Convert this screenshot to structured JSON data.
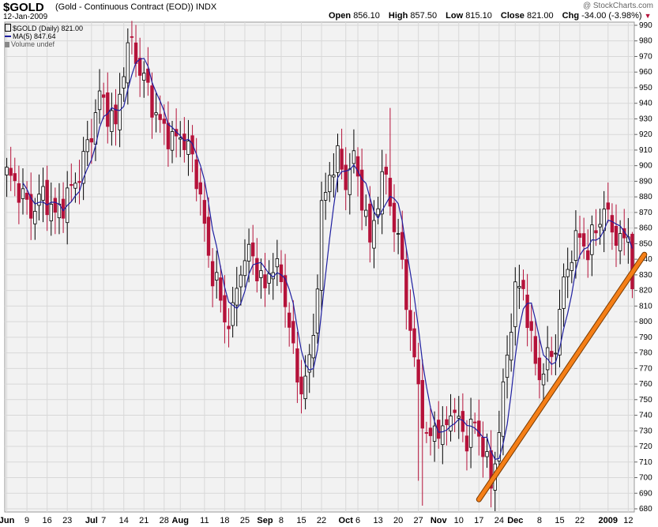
{
  "header": {
    "symbol": "$GOLD",
    "description": "(Gold - Continuous Contract (EOD))",
    "exchange": "INDX",
    "date": "12-Jan-2009",
    "watermark": "@ StockCharts.com",
    "open_label": "Open",
    "open": "856.10",
    "high_label": "High",
    "high": "857.50",
    "low_label": "Low",
    "low": "815.10",
    "close_label": "Close",
    "close": "821.00",
    "chg_label": "Chg",
    "chg": "-34.00 (-3.98%)",
    "chg_icon": "down-triangle-icon"
  },
  "legend": {
    "price": "$GOLD (Daily) 821.00",
    "ma": "MA(5) 847.64",
    "volume": "Volume undef"
  },
  "colors": {
    "up": "#000000",
    "down": "#b5123a",
    "ma": "#1f1fa0",
    "trendline": "#f57f17",
    "grid": "#d8d8d8",
    "plot_bg": "#f2f2f2"
  },
  "chart_data": {
    "type": "candlestick",
    "title": "$GOLD (Gold - Continuous Contract (EOD))",
    "ylim": [
      680,
      990
    ],
    "y_ticks": [
      680,
      690,
      700,
      710,
      720,
      730,
      740,
      750,
      760,
      770,
      780,
      790,
      800,
      810,
      820,
      830,
      840,
      850,
      860,
      870,
      880,
      890,
      900,
      910,
      920,
      930,
      940,
      950,
      960,
      970,
      980,
      990
    ],
    "x_ticks": [
      {
        "label": "Jun",
        "i": 0
      },
      {
        "label": "9",
        "i": 5
      },
      {
        "label": "16",
        "i": 10
      },
      {
        "label": "23",
        "i": 15
      },
      {
        "label": "Jul",
        "i": 21
      },
      {
        "label": "7",
        "i": 24
      },
      {
        "label": "14",
        "i": 29
      },
      {
        "label": "21",
        "i": 34
      },
      {
        "label": "28",
        "i": 39
      },
      {
        "label": "Aug",
        "i": 43
      },
      {
        "label": "11",
        "i": 49
      },
      {
        "label": "18",
        "i": 54
      },
      {
        "label": "25",
        "i": 59
      },
      {
        "label": "Sep",
        "i": 64
      },
      {
        "label": "8",
        "i": 68
      },
      {
        "label": "15",
        "i": 73
      },
      {
        "label": "22",
        "i": 78
      },
      {
        "label": "Oct",
        "i": 84
      },
      {
        "label": "6",
        "i": 87
      },
      {
        "label": "13",
        "i": 92
      },
      {
        "label": "20",
        "i": 97
      },
      {
        "label": "27",
        "i": 102
      },
      {
        "label": "Nov",
        "i": 107
      },
      {
        "label": "10",
        "i": 112
      },
      {
        "label": "17",
        "i": 117
      },
      {
        "label": "24",
        "i": 122
      },
      {
        "label": "Dec",
        "i": 126
      },
      {
        "label": "8",
        "i": 132
      },
      {
        "label": "15",
        "i": 137
      },
      {
        "label": "22",
        "i": 142
      },
      {
        "label": "2009",
        "i": 149
      },
      {
        "label": "12",
        "i": 154
      }
    ],
    "n_bars": 156,
    "anchors": [
      [
        0,
        895
      ],
      [
        3,
        885
      ],
      [
        6,
        870
      ],
      [
        9,
        882
      ],
      [
        12,
        868
      ],
      [
        15,
        880
      ],
      [
        18,
        895
      ],
      [
        21,
        922
      ],
      [
        23,
        945
      ],
      [
        25,
        935
      ],
      [
        27,
        925
      ],
      [
        29,
        965
      ],
      [
        31,
        980
      ],
      [
        33,
        960
      ],
      [
        35,
        950
      ],
      [
        37,
        930
      ],
      [
        39,
        925
      ],
      [
        41,
        915
      ],
      [
        43,
        920
      ],
      [
        46,
        905
      ],
      [
        48,
        880
      ],
      [
        50,
        840
      ],
      [
        52,
        825
      ],
      [
        54,
        800
      ],
      [
        56,
        805
      ],
      [
        58,
        835
      ],
      [
        60,
        845
      ],
      [
        62,
        835
      ],
      [
        64,
        820
      ],
      [
        66,
        840
      ],
      [
        68,
        825
      ],
      [
        70,
        800
      ],
      [
        72,
        760
      ],
      [
        74,
        762
      ],
      [
        76,
        790
      ],
      [
        78,
        870
      ],
      [
        80,
        895
      ],
      [
        82,
        905
      ],
      [
        84,
        890
      ],
      [
        86,
        905
      ],
      [
        88,
        880
      ],
      [
        90,
        850
      ],
      [
        92,
        880
      ],
      [
        94,
        895
      ],
      [
        96,
        860
      ],
      [
        98,
        840
      ],
      [
        100,
        790
      ],
      [
        102,
        760
      ],
      [
        104,
        720
      ],
      [
        106,
        735
      ],
      [
        108,
        725
      ],
      [
        110,
        745
      ],
      [
        112,
        735
      ],
      [
        114,
        725
      ],
      [
        116,
        735
      ],
      [
        118,
        720
      ],
      [
        120,
        695
      ],
      [
        122,
        730
      ],
      [
        124,
        780
      ],
      [
        126,
        820
      ],
      [
        128,
        822
      ],
      [
        130,
        785
      ],
      [
        132,
        765
      ],
      [
        134,
        775
      ],
      [
        136,
        785
      ],
      [
        138,
        825
      ],
      [
        140,
        845
      ],
      [
        142,
        855
      ],
      [
        144,
        845
      ],
      [
        146,
        860
      ],
      [
        148,
        872
      ],
      [
        150,
        860
      ],
      [
        152,
        850
      ],
      [
        154,
        856
      ],
      [
        155,
        821
      ]
    ],
    "ma_period": 5,
    "trendline": {
      "start": {
        "i": 117,
        "v": 686
      },
      "end": {
        "i": 158,
        "v": 843
      }
    }
  }
}
